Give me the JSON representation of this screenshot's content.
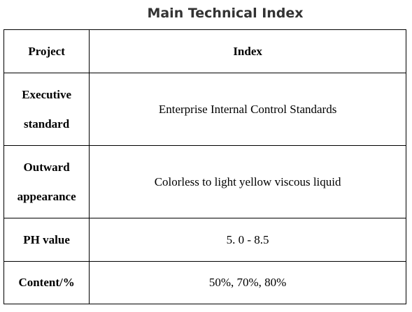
{
  "title": "Main Technical Index",
  "table": {
    "headers": [
      "Project",
      "Index"
    ],
    "rows": [
      {
        "project": "Executive standard",
        "index": "Enterprise Internal Control Standards"
      },
      {
        "project": "Outward appearance",
        "index": "Colorless to light yellow viscous liquid"
      },
      {
        "project": "PH value",
        "index": "5. 0 - 8.5"
      },
      {
        "project": "Content/%",
        "index": "50%, 70%, 80%"
      }
    ]
  }
}
